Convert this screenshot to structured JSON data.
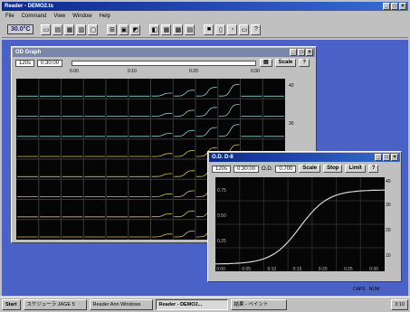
{
  "app": {
    "title": "Reader - DEMO2.ts"
  },
  "menu": [
    "File",
    "Command",
    "View",
    "Window",
    "Help"
  ],
  "toolbar": {
    "temperature": "30.0°C"
  },
  "od_window": {
    "title": "OD Graph",
    "interval": "120s",
    "duration": "0:30:00",
    "scale_ticks": [
      "0.00",
      "0:10",
      "0:20",
      "0:30"
    ],
    "scale_button": "Scale",
    "y_ticks": [
      "40",
      "30",
      "20",
      "10"
    ]
  },
  "detail_window": {
    "title": "O.D. D-8",
    "interval": "120s",
    "duration": "0:30:00",
    "od_label": "O.D.",
    "od_value": "0.700",
    "buttons": [
      "Scale",
      "Stop",
      "Limit"
    ],
    "y_ticks": [
      "0.75",
      "0.50",
      "0.25"
    ],
    "x_ticks": [
      "0:00",
      "0:05",
      "0:10",
      "0:15",
      "0:20",
      "0:25",
      "0:30"
    ],
    "right_ticks": [
      "40",
      "30",
      "20",
      "10"
    ]
  },
  "status": {
    "caps": "CAPS",
    "num": "NUM"
  },
  "taskbar": {
    "start": "Start",
    "items": [
      "スケジューラ JAGE 5",
      "Reader Ann Windows",
      "Reader - DEMO2...",
      "結果 - ペイント"
    ],
    "clock": "3:10"
  },
  "colors": {
    "trace_blue": "#8fd0d8",
    "trace_yellow": "#d8c050",
    "curve_white": "#d8d8d8"
  }
}
